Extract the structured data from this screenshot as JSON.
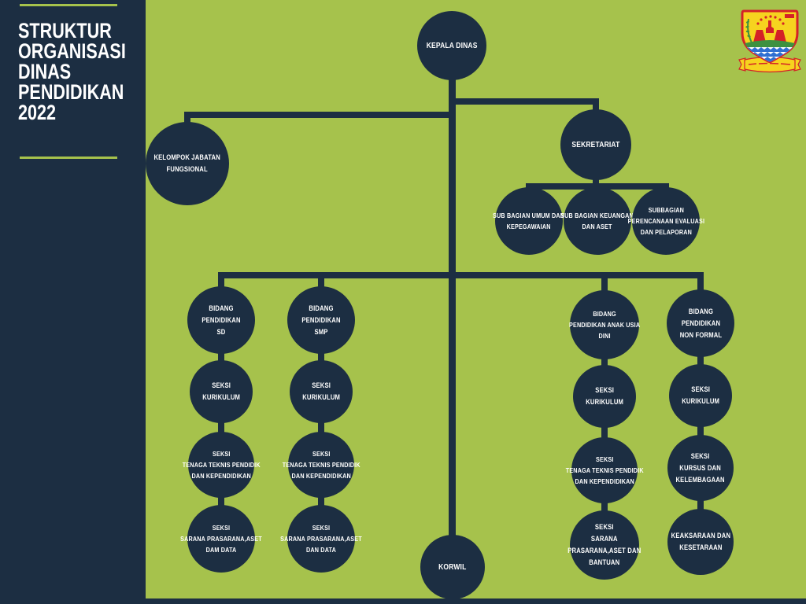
{
  "sidebar": {
    "title_lines": [
      "STRUKTUR",
      "ORGANISASI",
      "DINAS",
      "PENDIDIKAN",
      "2022"
    ]
  },
  "logo": {
    "icon": "cirebon-regency-emblem"
  },
  "colors": {
    "background": "#a6c24c",
    "ink": "#1c2e42",
    "text": "#ffffff",
    "emblem_yellow": "#f6d31f",
    "emblem_red": "#d42127",
    "emblem_green": "#3d9140",
    "emblem_blue": "#2f6fd2"
  },
  "org_chart": {
    "type": "org-tree",
    "nodes": [
      {
        "id": "kepala_dinas",
        "parent": null,
        "lines": [
          "KEPALA DINAS"
        ]
      },
      {
        "id": "kelompok_jabatan",
        "parent": "kepala_dinas",
        "lines": [
          "KELOMPOK JABATAN",
          "FUNGSIONAL"
        ]
      },
      {
        "id": "sekretariat",
        "parent": "kepala_dinas",
        "lines": [
          "SEKRETARIAT"
        ]
      },
      {
        "id": "sub_umum",
        "parent": "sekretariat",
        "lines": [
          "SUB BAGIAN UMUM DAN",
          "KEPEGAWAIAN"
        ]
      },
      {
        "id": "sub_keuangan",
        "parent": "sekretariat",
        "lines": [
          "SUB BAGIAN KEUANGAN",
          "DAN ASET"
        ]
      },
      {
        "id": "sub_perencanaan",
        "parent": "sekretariat",
        "lines": [
          "SUBBAGIAN",
          "PERENCANAAN EVALUASI",
          "DAN PELAPORAN"
        ]
      },
      {
        "id": "bidang_sd",
        "parent": "kepala_dinas",
        "lines": [
          "BIDANG",
          "PENDIDIKAN",
          "SD"
        ]
      },
      {
        "id": "bidang_smp",
        "parent": "kepala_dinas",
        "lines": [
          "BIDANG",
          "PENDIDIKAN",
          "SMP"
        ]
      },
      {
        "id": "bidang_paud",
        "parent": "kepala_dinas",
        "lines": [
          "BIDANG",
          "PENDIDIKAN ANAK USIA",
          "DINI"
        ]
      },
      {
        "id": "bidang_nonformal",
        "parent": "kepala_dinas",
        "lines": [
          "BIDANG",
          "PENDIDIKAN",
          "NON FORMAL"
        ]
      },
      {
        "id": "kurikulum_sd",
        "parent": "bidang_sd",
        "lines": [
          "SEKSI",
          "KURIKULUM"
        ]
      },
      {
        "id": "kurikulum_smp",
        "parent": "bidang_smp",
        "lines": [
          "SEKSI",
          "KURIKULUM"
        ]
      },
      {
        "id": "kurikulum_paud",
        "parent": "bidang_paud",
        "lines": [
          "SEKSI",
          "KURIKULUM"
        ]
      },
      {
        "id": "kurikulum_nonformal",
        "parent": "bidang_nonformal",
        "lines": [
          "SEKSI",
          "KURIKULUM"
        ]
      },
      {
        "id": "tenaga_sd",
        "parent": "kurikulum_sd",
        "lines": [
          "SEKSI",
          "TENAGA TEKNIS PENDIDIK",
          "DAN KEPENDIDIKAN"
        ]
      },
      {
        "id": "tenaga_smp",
        "parent": "kurikulum_smp",
        "lines": [
          "SEKSI",
          "TENAGA TEKNIS PENDIDIK",
          "DAN KEPENDIDIKAN"
        ]
      },
      {
        "id": "tenaga_paud",
        "parent": "kurikulum_paud",
        "lines": [
          "SEKSI",
          "TENAGA TEKNIS PENDIDIK",
          "DAN KEPENDIDIKAN"
        ]
      },
      {
        "id": "kursus_nonformal",
        "parent": "kurikulum_nonformal",
        "lines": [
          "SEKSI",
          "KURSUS DAN",
          "KELEMBAGAAN"
        ]
      },
      {
        "id": "sarana_sd",
        "parent": "tenaga_sd",
        "lines": [
          "SEKSI",
          "SARANA PRASARANA,ASET",
          "DAM DATA"
        ]
      },
      {
        "id": "sarana_smp",
        "parent": "tenaga_smp",
        "lines": [
          "SEKSI",
          "SARANA PRASARANA,ASET",
          "DAN DATA"
        ]
      },
      {
        "id": "sarana_paud",
        "parent": "tenaga_paud",
        "lines": [
          "SEKSI",
          "SARANA",
          "PRASARANA,ASET DAN",
          "BANTUAN"
        ]
      },
      {
        "id": "keaksaraan_nonformal",
        "parent": "kursus_nonformal",
        "lines": [
          "KEAKSARAAN DAN",
          "KESETARAAN"
        ]
      },
      {
        "id": "korwil",
        "parent": "kepala_dinas",
        "lines": [
          "KORWIL"
        ]
      }
    ]
  }
}
